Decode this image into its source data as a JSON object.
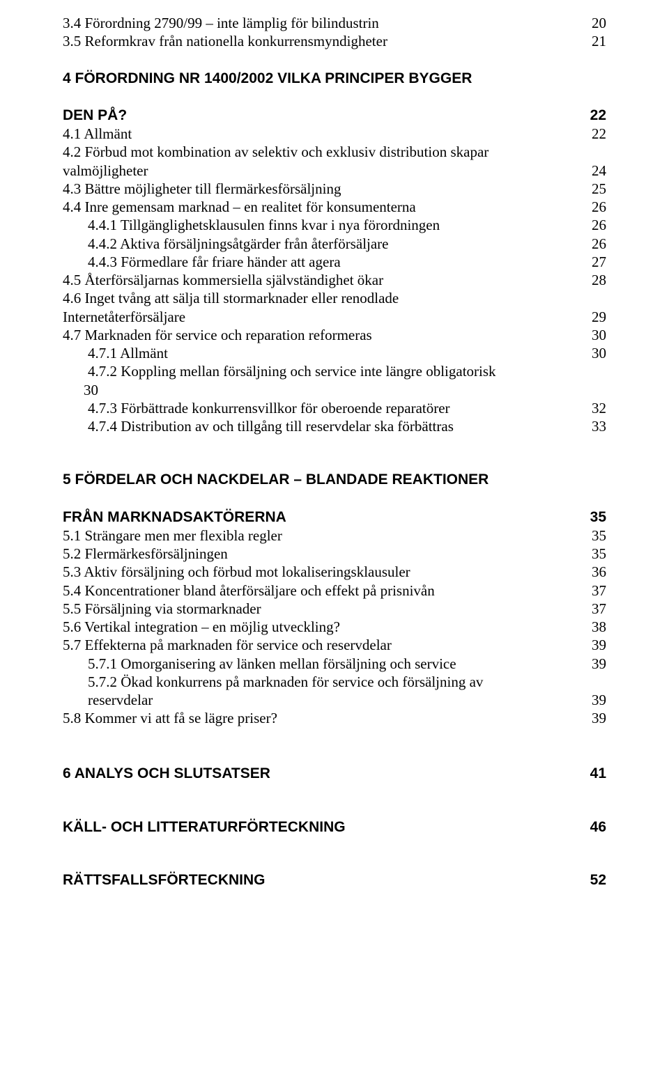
{
  "lines": [
    {
      "style": "body-line",
      "indent": 0,
      "text": "3.4 Förordning 2790/99 – inte lämplig för bilindustrin",
      "num": "20"
    },
    {
      "style": "body-line",
      "indent": 0,
      "text": "3.5 Reformkrav från nationella konkurrensmyndigheter",
      "num": "21"
    },
    {
      "style": "section-heading section-heading-gap1",
      "indent": 0,
      "text": "4 FÖRORDNING NR 1400/2002 VILKA PRINCIPER BYGGER",
      "num": ""
    },
    {
      "style": "section-heading",
      "indent": 0,
      "text": "DEN PÅ?",
      "num": "22"
    },
    {
      "style": "body-line",
      "indent": 0,
      "text": "4.1 Allmänt",
      "num": "22"
    },
    {
      "style": "body-line",
      "indent": 0,
      "text": "4.2 Förbud mot kombination av selektiv och exklusiv distribution skapar",
      "num": ""
    },
    {
      "style": "body-line",
      "indent": 0,
      "text": "valmöjligheter",
      "num": "24"
    },
    {
      "style": "body-line",
      "indent": 0,
      "text": "4.3 Bättre möjligheter till flermärkesförsäljning",
      "num": "25"
    },
    {
      "style": "body-line",
      "indent": 0,
      "text": "4.4 Inre gemensam marknad – en realitet för konsumenterna",
      "num": "26"
    },
    {
      "style": "body-line",
      "indent": 1,
      "text": "4.4.1 Tillgänglighetsklausulen finns kvar i nya förordningen",
      "num": "26"
    },
    {
      "style": "body-line",
      "indent": 1,
      "text": "4.4.2 Aktiva försäljningsåtgärder från återförsäljare",
      "num": "26"
    },
    {
      "style": "body-line",
      "indent": 1,
      "text": "4.4.3 Förmedlare får friare händer att agera",
      "num": "27"
    },
    {
      "style": "body-line",
      "indent": 0,
      "text": "4.5 Återförsäljarnas kommersiella självständighet ökar",
      "num": "28"
    },
    {
      "style": "body-line",
      "indent": 0,
      "text": "4.6 Inget tvång att sälja till stormarknader eller renodlade",
      "num": ""
    },
    {
      "style": "body-line",
      "indent": 0,
      "text": "Internetåterförsäljare",
      "num": "29"
    },
    {
      "style": "body-line",
      "indent": 0,
      "text": "4.7 Marknaden för service och reparation reformeras",
      "num": "30"
    },
    {
      "style": "body-line",
      "indent": 1,
      "text": "4.7.1 Allmänt",
      "num": "30"
    },
    {
      "style": "body-line",
      "indent": 1,
      "text": "4.7.2 Koppling mellan försäljning och service inte längre obligatorisk",
      "num": ""
    },
    {
      "style": "body-line",
      "indent": 2,
      "text_pad": "        30",
      "text": "",
      "num": ""
    },
    {
      "style": "body-line",
      "indent": 1,
      "text": "4.7.3 Förbättrade konkurrensvillkor för oberoende reparatörer",
      "num": "32"
    },
    {
      "style": "body-line",
      "indent": 1,
      "text": "4.7.4 Distribution av och tillgång till reservdelar ska förbättras",
      "num": "33"
    },
    {
      "style": "section-heading section-heading-gap2",
      "indent": 0,
      "text": "5 FÖRDELAR OCH NACKDELAR – BLANDADE REAKTIONER",
      "num": ""
    },
    {
      "style": "section-heading",
      "indent": 0,
      "text": "FRÅN MARKNADSAKTÖRERNA",
      "num": "35"
    },
    {
      "style": "body-line",
      "indent": 0,
      "text": "5.1 Strängare men mer flexibla regler",
      "num": "35"
    },
    {
      "style": "body-line",
      "indent": 0,
      "text": "5.2 Flermärkesförsäljningen",
      "num": "35"
    },
    {
      "style": "body-line",
      "indent": 0,
      "text": "5.3 Aktiv försäljning och förbud mot lokaliseringsklausuler",
      "num": "36"
    },
    {
      "style": "body-line",
      "indent": 0,
      "text": "5.4 Koncentrationer bland återförsäljare och effekt på prisnivån",
      "num": "37"
    },
    {
      "style": "body-line",
      "indent": 0,
      "text": "5.5 Försäljning via stormarknader",
      "num": "37"
    },
    {
      "style": "body-line",
      "indent": 0,
      "text": "5.6 Vertikal integration – en möjlig utveckling?",
      "num": "38"
    },
    {
      "style": "body-line",
      "indent": 0,
      "text": "5.7 Effekterna på marknaden för service och reservdelar",
      "num": "39"
    },
    {
      "style": "body-line",
      "indent": 1,
      "text": "5.7.1 Omorganisering av länken mellan försäljning och service",
      "num": "39"
    },
    {
      "style": "body-line",
      "indent": 1,
      "text": "5.7.2 Ökad konkurrens på marknaden för service och försäljning av",
      "num": ""
    },
    {
      "style": "body-line",
      "indent": 1,
      "text": "reservdelar",
      "num": "39"
    },
    {
      "style": "body-line",
      "indent": 0,
      "text": "5.8 Kommer vi att få se lägre priser?",
      "num": "39"
    },
    {
      "style": "section-heading section-heading-gap3",
      "indent": 0,
      "text": "6   ANALYS OCH SLUTSATSER",
      "num": "41"
    },
    {
      "style": "standalone-heading",
      "indent": 0,
      "text": "KÄLL- OCH LITTERATURFÖRTECKNING",
      "num": "46"
    },
    {
      "style": "standalone-heading",
      "indent": 0,
      "text": "RÄTTSFALLSFÖRTECKNING",
      "num": "52"
    }
  ]
}
